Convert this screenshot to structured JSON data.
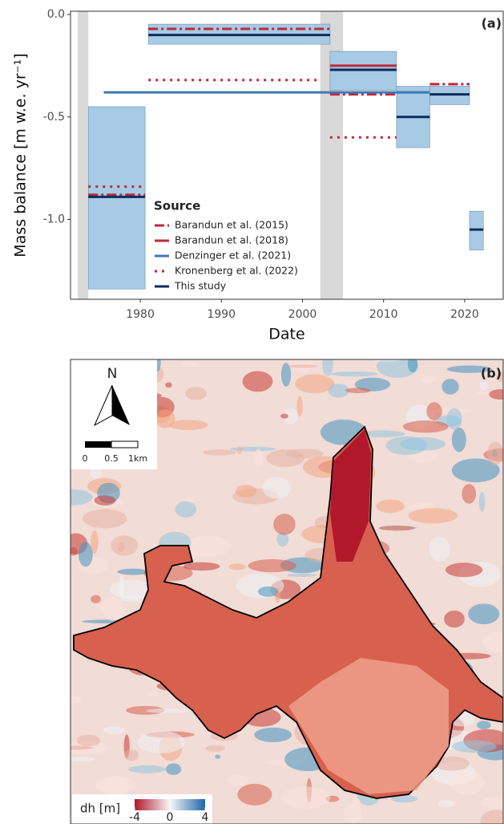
{
  "chart_data": {
    "type": "segments",
    "panel_label": "(a)",
    "x_label": "Date",
    "y_label": "Mass balance [m w.e. yr⁻¹]",
    "xlim": [
      1971.4,
      2024.75
    ],
    "ylim": [
      -1.39,
      0.016
    ],
    "xticks": [
      1980,
      1990,
      2000,
      2010,
      2020
    ],
    "yticks": [
      {
        "value": 0,
        "label": "0.0"
      },
      -0.5,
      {
        "value": -1,
        "label": "-1.0"
      }
    ],
    "shaded_periods": [
      [
        1972.3,
        1973.6
      ],
      [
        2002.2,
        2005.0
      ]
    ],
    "legend_title": "Source",
    "series": [
      {
        "name": "Barandun et al. (2015)",
        "color": "#c0283a",
        "style": "dashdot",
        "start": [
          1981,
          1973.6,
          2003.4,
          2015.7
        ],
        "end": [
          2003.4,
          1980.6,
          2011.6,
          2020.6
        ],
        "values": [
          -0.07,
          -0.88,
          -0.39,
          -0.34
        ]
      },
      {
        "name": "Barandun et al. (2018)",
        "color": "#c0283a",
        "style": "solid",
        "start": [
          2003.4
        ],
        "end": [
          2011.6
        ],
        "values": [
          -0.25
        ]
      },
      {
        "name": "Denzinger et al. (2021)",
        "color": "#3f78b5",
        "style": "solid",
        "start": [
          1975.5
        ],
        "end": [
          2015.7
        ],
        "values": [
          -0.38
        ]
      },
      {
        "name": "Kronenberg et al. (2022)",
        "color": "#c0283a",
        "style": "dotted",
        "start": [
          1981,
          1973.6,
          2003.4
        ],
        "end": [
          2002.2,
          1980.6,
          2011.6
        ],
        "values": [
          -0.32,
          -0.84,
          -0.6
        ]
      },
      {
        "name": "This study",
        "color": "#0c2d5e",
        "style": "solid",
        "box_color": "#a7cbe4",
        "start": [
          1973.6,
          1981,
          2003.4,
          2011.6,
          2015.7,
          2020.6
        ],
        "end": [
          1980.6,
          2003.4,
          2011.6,
          2015.7,
          2020.6,
          2022.3
        ],
        "values": [
          -0.89,
          -0.1,
          -0.27,
          -0.5,
          -0.39,
          -1.05
        ],
        "lower": [
          -1.34,
          -0.145,
          -0.37,
          -0.65,
          -0.44,
          -1.15
        ],
        "upper": [
          -0.45,
          -0.047,
          -0.18,
          -0.35,
          -0.35,
          -0.96
        ]
      }
    ]
  },
  "map": {
    "panel_label": "(b)",
    "north": "N",
    "scale_labels": [
      "0",
      "0.5",
      "1km"
    ],
    "colorbar_title": "dh [m]",
    "colorbar_ticks": [
      -4,
      0,
      4
    ]
  }
}
